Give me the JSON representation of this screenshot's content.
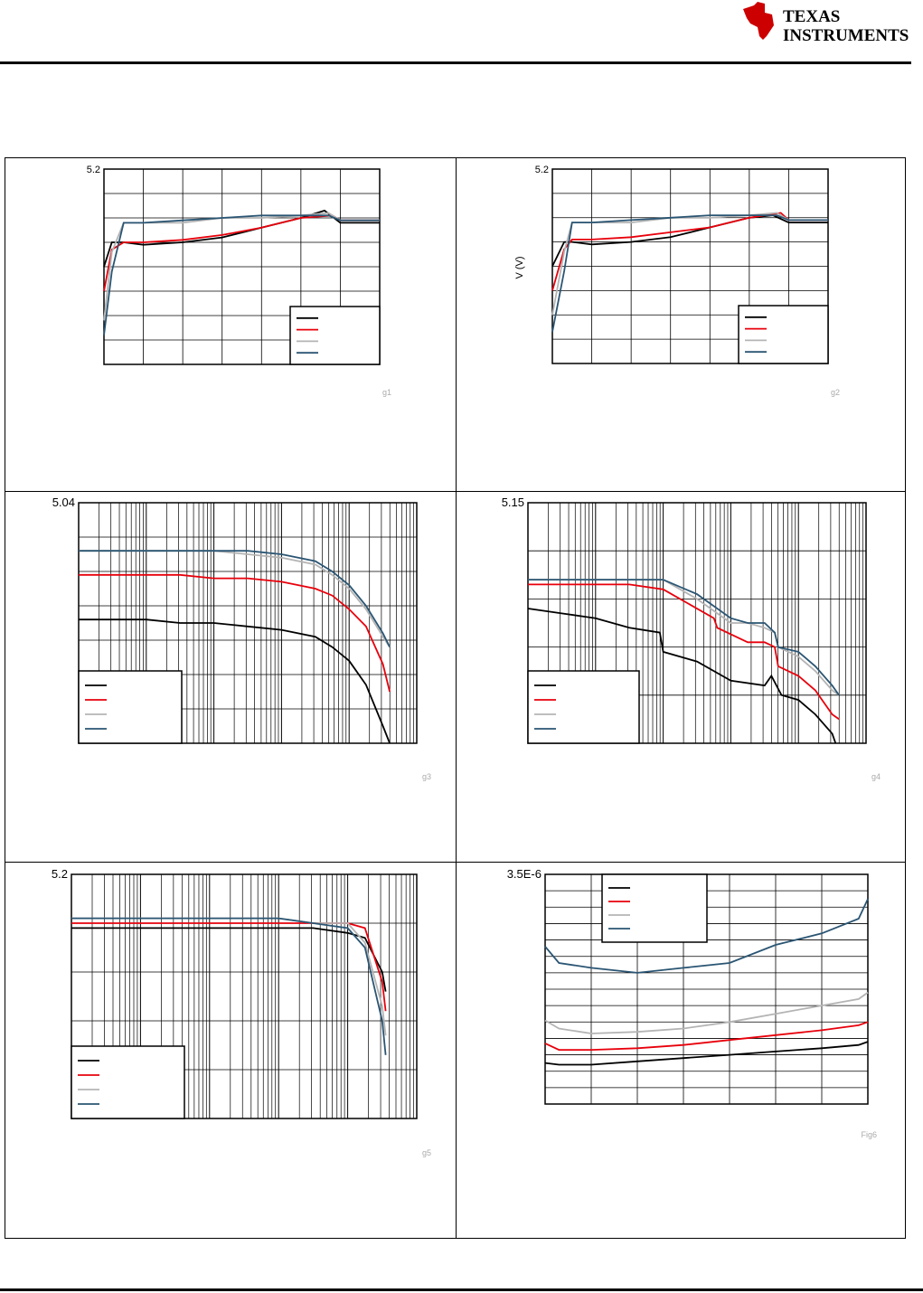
{
  "brand": {
    "name_line1": "TEXAS",
    "name_line2": "INSTRUMENTS",
    "brand_color": "#cc0000"
  },
  "series_colors": [
    "#000000",
    "#e8000b",
    "#b4b4b4",
    "#2a5573"
  ],
  "chart_data": [
    {
      "type": "line",
      "id": "g1",
      "ymax_label": "5.2",
      "fig_label": "g1",
      "xlim": [
        0,
        7
      ],
      "ylim": [
        0,
        8
      ],
      "x_gridlines": 7,
      "y_gridlines": 8,
      "xscale": "linear",
      "legend": "bottom-right",
      "series": [
        {
          "x": [
            0,
            0.2,
            0.5,
            1,
            2,
            3,
            4,
            5,
            5.6,
            6,
            7
          ],
          "y": [
            4,
            5,
            5,
            4.9,
            5,
            5.2,
            5.6,
            6,
            6.3,
            5.8,
            5.8
          ]
        },
        {
          "x": [
            0,
            0.2,
            0.5,
            1,
            2,
            3,
            4,
            5,
            5.8,
            6,
            7
          ],
          "y": [
            3,
            4.7,
            5,
            5,
            5.1,
            5.3,
            5.6,
            6,
            6.1,
            5.9,
            5.9
          ]
        },
        {
          "x": [
            0,
            0.2,
            0.5,
            1,
            2,
            3,
            4,
            5,
            5.7,
            6,
            7
          ],
          "y": [
            1.8,
            4.6,
            5.8,
            5.8,
            5.8,
            6,
            6,
            6.1,
            6.2,
            5.9,
            5.9
          ]
        },
        {
          "x": [
            0,
            0.2,
            0.5,
            1,
            2,
            3,
            4,
            5,
            5.7,
            6,
            7
          ],
          "y": [
            1.2,
            3.8,
            5.8,
            5.8,
            5.9,
            6,
            6.1,
            6.1,
            6.1,
            5.9,
            5.9
          ]
        }
      ]
    },
    {
      "type": "line",
      "id": "g2",
      "ymax_label": "5.2",
      "ylabel": "V      (V)",
      "fig_label": "g2",
      "xlim": [
        0,
        7
      ],
      "ylim": [
        0,
        8
      ],
      "x_gridlines": 7,
      "y_gridlines": 8,
      "xscale": "linear",
      "legend": "bottom-right",
      "series": [
        {
          "x": [
            0,
            0.3,
            0.5,
            1,
            2,
            3,
            4,
            5,
            5.6,
            6,
            7
          ],
          "y": [
            4,
            5,
            5,
            4.9,
            5,
            5.2,
            5.6,
            6,
            6.1,
            5.8,
            5.8
          ]
        },
        {
          "x": [
            0,
            0.3,
            0.5,
            1,
            2,
            3,
            4,
            5,
            5.8,
            6,
            7
          ],
          "y": [
            3,
            4.7,
            5.1,
            5.1,
            5.2,
            5.4,
            5.6,
            6,
            6.2,
            5.9,
            5.9
          ]
        },
        {
          "x": [
            0,
            0.3,
            0.5,
            1,
            2,
            3,
            4,
            5,
            5.7,
            6,
            7
          ],
          "y": [
            2,
            4.6,
            5.8,
            5.8,
            5.8,
            6,
            6,
            6.1,
            6.2,
            5.9,
            5.9
          ]
        },
        {
          "x": [
            0,
            0.3,
            0.5,
            1,
            2,
            3,
            4,
            5,
            5.7,
            6,
            7
          ],
          "y": [
            1.3,
            3.8,
            5.8,
            5.8,
            5.9,
            6,
            6.1,
            6.1,
            6.1,
            5.9,
            5.9
          ]
        }
      ]
    },
    {
      "type": "line",
      "id": "g3",
      "ymax_label": "5.04",
      "fig_label": "g3",
      "xlim": [
        0,
        10
      ],
      "ylim": [
        0,
        7
      ],
      "x_gridlines": 5,
      "y_gridlines": 7,
      "xscale": "log-decades",
      "legend": "bottom-left",
      "series": [
        {
          "x": [
            0,
            1,
            2,
            3,
            4,
            5,
            6,
            7,
            7.5,
            8,
            8.5,
            9,
            9.2
          ],
          "y": [
            3.6,
            3.6,
            3.6,
            3.5,
            3.5,
            3.4,
            3.3,
            3.1,
            2.8,
            2.4,
            1.7,
            0.5,
            0
          ]
        },
        {
          "x": [
            0,
            1,
            2,
            3,
            4,
            5,
            6,
            7,
            7.5,
            8,
            8.5,
            9,
            9.2
          ],
          "y": [
            4.9,
            4.9,
            4.9,
            4.9,
            4.8,
            4.8,
            4.7,
            4.5,
            4.3,
            3.9,
            3.4,
            2.3,
            1.5
          ]
        },
        {
          "x": [
            0,
            1,
            2,
            3,
            4,
            5,
            6,
            7,
            7.5,
            8,
            8.5,
            9,
            9.2
          ],
          "y": [
            5.6,
            5.6,
            5.6,
            5.6,
            5.6,
            5.5,
            5.4,
            5.2,
            4.9,
            4.5,
            3.9,
            3.1,
            2.8
          ]
        },
        {
          "x": [
            0,
            1,
            2,
            3,
            4,
            5,
            6,
            7,
            7.5,
            8,
            8.5,
            9,
            9.2
          ],
          "y": [
            5.6,
            5.6,
            5.6,
            5.6,
            5.6,
            5.6,
            5.5,
            5.3,
            5.0,
            4.6,
            4.0,
            3.2,
            2.8
          ]
        }
      ]
    },
    {
      "type": "line",
      "id": "g4",
      "ymax_label": "5.15",
      "fig_label": "g4",
      "xlim": [
        0,
        10
      ],
      "ylim": [
        0,
        5
      ],
      "x_gridlines": 5,
      "y_gridlines": 5,
      "xscale": "log-decades",
      "legend": "bottom-left",
      "series": [
        {
          "x": [
            0,
            1,
            2,
            3,
            3.9,
            4.0,
            5,
            6,
            7,
            7.2,
            7.5,
            8,
            8.5,
            9,
            9.1
          ],
          "y": [
            2.8,
            2.7,
            2.6,
            2.4,
            2.3,
            1.9,
            1.7,
            1.3,
            1.2,
            1.4,
            1.0,
            0.9,
            0.6,
            0.2,
            0
          ]
        },
        {
          "x": [
            0,
            1,
            2,
            3,
            4,
            5.5,
            5.6,
            6.5,
            7,
            7.3,
            7.4,
            8,
            8.5,
            9,
            9.2
          ],
          "y": [
            3.3,
            3.3,
            3.3,
            3.3,
            3.2,
            2.6,
            2.4,
            2.1,
            2.1,
            2.0,
            1.6,
            1.4,
            1.1,
            0.6,
            0.5
          ]
        },
        {
          "x": [
            0,
            1,
            2,
            3,
            4,
            5,
            6,
            6.5,
            7,
            7.3,
            7.4,
            8,
            8.5,
            9,
            9.2
          ],
          "y": [
            3.4,
            3.4,
            3.4,
            3.4,
            3.4,
            3.0,
            2.5,
            2.5,
            2.4,
            2.3,
            2.0,
            1.8,
            1.5,
            1.1,
            1.0
          ]
        },
        {
          "x": [
            0,
            1,
            2,
            3,
            4,
            5,
            6,
            6.5,
            7,
            7.3,
            7.4,
            8,
            8.5,
            9,
            9.2
          ],
          "y": [
            3.4,
            3.4,
            3.4,
            3.4,
            3.4,
            3.1,
            2.6,
            2.5,
            2.5,
            2.3,
            2.0,
            1.9,
            1.6,
            1.2,
            1.0
          ]
        }
      ]
    },
    {
      "type": "line",
      "id": "g5",
      "ymax_label": "5.2",
      "fig_label": "g5",
      "xlim": [
        0,
        10
      ],
      "ylim": [
        0,
        5
      ],
      "x_gridlines": 5,
      "y_gridlines": 5,
      "xscale": "log-decades",
      "legend": "bottom-left",
      "series": [
        {
          "x": [
            0,
            2,
            4,
            6,
            7,
            8,
            8.5,
            9,
            9.1
          ],
          "y": [
            3.9,
            3.9,
            3.9,
            3.9,
            3.9,
            3.8,
            3.7,
            3.0,
            2.6
          ]
        },
        {
          "x": [
            0,
            2,
            4,
            6,
            7,
            8,
            8.5,
            9,
            9.1
          ],
          "y": [
            4.0,
            4.0,
            4.0,
            4.0,
            4.0,
            4.0,
            3.9,
            2.8,
            2.2
          ]
        },
        {
          "x": [
            0,
            2,
            4,
            6,
            7,
            8,
            8.5,
            9,
            9.1
          ],
          "y": [
            4.1,
            4.1,
            4.1,
            4.1,
            4.0,
            4.0,
            3.6,
            2.3,
            1.7
          ]
        },
        {
          "x": [
            0,
            2,
            4,
            6,
            7,
            8,
            8.5,
            9,
            9.1
          ],
          "y": [
            4.1,
            4.1,
            4.1,
            4.1,
            4.0,
            3.9,
            3.5,
            2.0,
            1.3
          ]
        }
      ]
    },
    {
      "type": "line",
      "id": "Fig6",
      "ymax_label": "3.5E-6",
      "fig_label": "Fig6",
      "xlim": [
        0,
        7
      ],
      "ylim": [
        0,
        14
      ],
      "x_gridlines": 7,
      "y_gridlines": 14,
      "xscale": "linear",
      "legend": "top-left",
      "series": [
        {
          "x": [
            0,
            0.3,
            1,
            2,
            3,
            4,
            5,
            6,
            6.8,
            7
          ],
          "y": [
            2.5,
            2.4,
            2.4,
            2.6,
            2.8,
            3.0,
            3.2,
            3.4,
            3.6,
            3.8
          ]
        },
        {
          "x": [
            0,
            0.3,
            1,
            2,
            3,
            4,
            5,
            6,
            6.8,
            7
          ],
          "y": [
            3.7,
            3.3,
            3.3,
            3.4,
            3.6,
            3.9,
            4.2,
            4.5,
            4.8,
            5.0
          ]
        },
        {
          "x": [
            0,
            0.3,
            1,
            2,
            3,
            4,
            5,
            6,
            6.8,
            7
          ],
          "y": [
            5.1,
            4.6,
            4.3,
            4.4,
            4.6,
            5.0,
            5.5,
            6.0,
            6.4,
            6.8
          ]
        },
        {
          "x": [
            0,
            0.3,
            1,
            2,
            3,
            4,
            5,
            6,
            6.8,
            7
          ],
          "y": [
            9.6,
            8.6,
            8.3,
            8.0,
            8.3,
            8.6,
            9.7,
            10.4,
            11.3,
            12.5
          ]
        }
      ]
    }
  ]
}
